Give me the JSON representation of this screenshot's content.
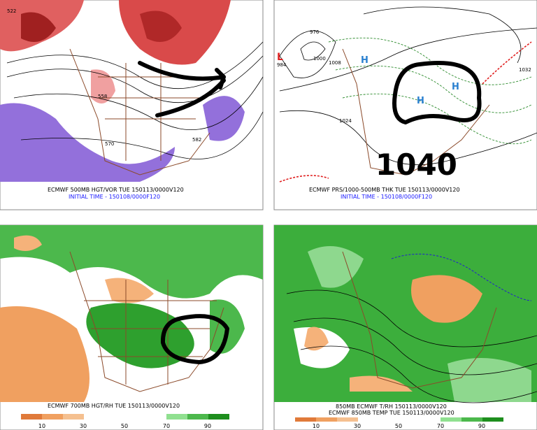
{
  "panels": [
    {
      "caption": [
        "ECMWF 500MB HGT/VOR TUE 150113/0000V120",
        "INITIAL TIME - 150108/0000F120"
      ],
      "labels": [
        "522",
        "558",
        "570",
        "582"
      ]
    },
    {
      "caption": [
        "ECMWF PRS/1000-500MB THK TUE 150113/0000V120",
        "INITIAL TIME - 150108/0000F120"
      ],
      "annotation": "1040",
      "labels": [
        "L",
        "H",
        "H",
        "H",
        "976",
        "984",
        "1000",
        "1008",
        "1024",
        "1032"
      ]
    },
    {
      "caption": [
        "ECMWF 700MB HGT/RH TUE 150113/0000V120"
      ],
      "colorbar": [
        10,
        30,
        50,
        70,
        90
      ]
    },
    {
      "caption": [
        "850MB ECMWF T/RH 150113/0000V120",
        "ECMWF 850MB TEMP TUE 150113/0000V120"
      ],
      "colorbar": [
        10,
        30,
        50,
        70,
        90
      ]
    }
  ]
}
